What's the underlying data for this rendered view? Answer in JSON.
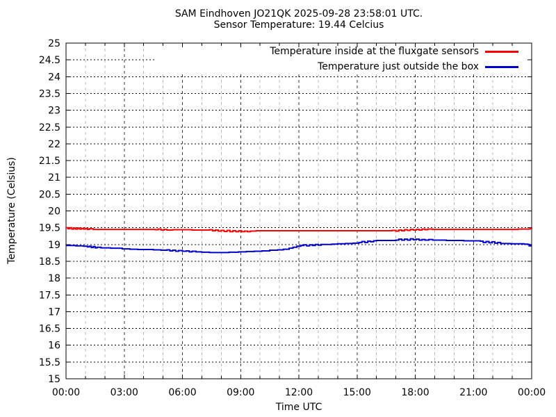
{
  "chart_data": {
    "type": "line",
    "title": "SAM Eindhoven JO21QK 2025-09-28 23:58:01 UTC.",
    "subtitle": "Sensor Temperature: 19.44 Celcius",
    "xlabel": "Time UTC",
    "ylabel": "Temperature (Celsius)",
    "xlim_hours": [
      0,
      24
    ],
    "ylim": [
      15,
      25
    ],
    "ytick_step": 0.5,
    "ytick_labels": [
      "15",
      "15.5",
      "16",
      "16.5",
      "17",
      "17.5",
      "18",
      "18.5",
      "19",
      "19.5",
      "20",
      "20.5",
      "21",
      "21.5",
      "22",
      "22.5",
      "23",
      "23.5",
      "24",
      "24.5",
      "25"
    ],
    "xticks": [
      {
        "hour": 0,
        "label": "00:00"
      },
      {
        "hour": 3,
        "label": "03:00"
      },
      {
        "hour": 6,
        "label": "06:00"
      },
      {
        "hour": 9,
        "label": "09:00"
      },
      {
        "hour": 12,
        "label": "12:00"
      },
      {
        "hour": 15,
        "label": "15:00"
      },
      {
        "hour": 18,
        "label": "18:00"
      },
      {
        "hour": 21,
        "label": "21:00"
      },
      {
        "hour": 24,
        "label": "00:00"
      }
    ],
    "minor_xtick_every_hours": 1,
    "grid": true,
    "legend_position": "top-right-inside",
    "colors": {
      "background": "#ffffff",
      "text": "#000000",
      "border": "#000000",
      "grid_major_y": "#000000",
      "grid_major_x": "#3a3a3a",
      "grid_minor_x": "#b8b8b8"
    },
    "series": [
      {
        "name": "Temperature inside at the fluxgate sensors",
        "color": "#ff0000",
        "style": "steps",
        "points": [
          [
            0,
            19.5
          ],
          [
            0.1,
            19.47
          ],
          [
            0.2,
            19.5
          ],
          [
            0.3,
            19.46
          ],
          [
            0.4,
            19.49
          ],
          [
            0.5,
            19.46
          ],
          [
            0.6,
            19.49
          ],
          [
            0.7,
            19.46
          ],
          [
            0.8,
            19.48
          ],
          [
            0.9,
            19.46
          ],
          [
            1.0,
            19.48
          ],
          [
            1.1,
            19.45
          ],
          [
            1.2,
            19.47
          ],
          [
            1.4,
            19.45
          ],
          [
            2.0,
            19.45
          ],
          [
            3.0,
            19.45
          ],
          [
            4.0,
            19.45
          ],
          [
            4.6,
            19.44
          ],
          [
            4.75,
            19.46
          ],
          [
            4.9,
            19.43
          ],
          [
            5.05,
            19.45
          ],
          [
            5.2,
            19.43
          ],
          [
            5.5,
            19.44
          ],
          [
            6.0,
            19.44
          ],
          [
            6.5,
            19.43
          ],
          [
            7.0,
            19.43
          ],
          [
            7.4,
            19.44
          ],
          [
            7.55,
            19.41
          ],
          [
            7.7,
            19.43
          ],
          [
            7.85,
            19.4
          ],
          [
            8.0,
            19.42
          ],
          [
            8.15,
            19.39
          ],
          [
            8.3,
            19.42
          ],
          [
            8.45,
            19.38
          ],
          [
            8.6,
            19.41
          ],
          [
            8.75,
            19.38
          ],
          [
            8.9,
            19.41
          ],
          [
            9.05,
            19.38
          ],
          [
            9.2,
            19.4
          ],
          [
            9.35,
            19.38
          ],
          [
            9.5,
            19.4
          ],
          [
            9.8,
            19.41
          ],
          [
            10.5,
            19.41
          ],
          [
            12.0,
            19.41
          ],
          [
            14.0,
            19.41
          ],
          [
            16.0,
            19.41
          ],
          [
            16.8,
            19.42
          ],
          [
            17.0,
            19.4
          ],
          [
            17.15,
            19.43
          ],
          [
            17.3,
            19.41
          ],
          [
            17.45,
            19.44
          ],
          [
            17.6,
            19.42
          ],
          [
            17.75,
            19.45
          ],
          [
            17.9,
            19.43
          ],
          [
            18.05,
            19.45
          ],
          [
            18.2,
            19.43
          ],
          [
            18.35,
            19.46
          ],
          [
            18.5,
            19.44
          ],
          [
            18.65,
            19.46
          ],
          [
            18.9,
            19.45
          ],
          [
            19.5,
            19.45
          ],
          [
            20.5,
            19.45
          ],
          [
            21.5,
            19.45
          ],
          [
            22.5,
            19.45
          ],
          [
            23.3,
            19.46
          ],
          [
            23.8,
            19.46
          ],
          [
            23.92,
            19.48
          ],
          [
            24,
            19.5
          ]
        ]
      },
      {
        "name": "Temperature just outside the box",
        "color": "#0000cd",
        "style": "steps",
        "points": [
          [
            0,
            18.97
          ],
          [
            0.5,
            18.96
          ],
          [
            0.9,
            18.95
          ],
          [
            1.1,
            18.93
          ],
          [
            1.2,
            18.95
          ],
          [
            1.3,
            18.91
          ],
          [
            1.4,
            18.94
          ],
          [
            1.5,
            18.9
          ],
          [
            1.6,
            18.92
          ],
          [
            1.8,
            18.9
          ],
          [
            2.1,
            18.9
          ],
          [
            2.3,
            18.89
          ],
          [
            2.6,
            18.89
          ],
          [
            2.9,
            18.87
          ],
          [
            3.3,
            18.86
          ],
          [
            3.7,
            18.85
          ],
          [
            4.1,
            18.85
          ],
          [
            4.5,
            18.84
          ],
          [
            4.9,
            18.83
          ],
          [
            5.2,
            18.84
          ],
          [
            5.35,
            18.81
          ],
          [
            5.5,
            18.83
          ],
          [
            5.65,
            18.8
          ],
          [
            5.8,
            18.82
          ],
          [
            6.0,
            18.8
          ],
          [
            6.2,
            18.81
          ],
          [
            6.35,
            18.78
          ],
          [
            6.5,
            18.8
          ],
          [
            6.7,
            18.78
          ],
          [
            7.0,
            18.77
          ],
          [
            7.4,
            18.76
          ],
          [
            7.9,
            18.76
          ],
          [
            8.4,
            18.77
          ],
          [
            8.9,
            18.78
          ],
          [
            9.3,
            18.79
          ],
          [
            9.7,
            18.8
          ],
          [
            10.1,
            18.81
          ],
          [
            10.5,
            18.83
          ],
          [
            10.9,
            18.84
          ],
          [
            11.2,
            18.86
          ],
          [
            11.5,
            18.89
          ],
          [
            11.7,
            18.92
          ],
          [
            11.9,
            18.95
          ],
          [
            12.1,
            18.97
          ],
          [
            12.25,
            18.99
          ],
          [
            12.4,
            18.96
          ],
          [
            12.55,
            18.99
          ],
          [
            12.7,
            18.97
          ],
          [
            12.85,
            19.0
          ],
          [
            13.0,
            18.98
          ],
          [
            13.15,
            19.0
          ],
          [
            13.4,
            19.0
          ],
          [
            13.7,
            19.01
          ],
          [
            14.0,
            19.02
          ],
          [
            14.4,
            19.03
          ],
          [
            14.8,
            19.04
          ],
          [
            15.1,
            19.06
          ],
          [
            15.25,
            19.09
          ],
          [
            15.4,
            19.06
          ],
          [
            15.55,
            19.1
          ],
          [
            15.7,
            19.08
          ],
          [
            15.85,
            19.11
          ],
          [
            16.0,
            19.12
          ],
          [
            16.5,
            19.12
          ],
          [
            17.0,
            19.13
          ],
          [
            17.15,
            19.16
          ],
          [
            17.3,
            19.13
          ],
          [
            17.45,
            19.16
          ],
          [
            17.6,
            19.13
          ],
          [
            17.75,
            19.17
          ],
          [
            17.9,
            19.14
          ],
          [
            18.05,
            19.16
          ],
          [
            18.2,
            19.13
          ],
          [
            18.35,
            19.15
          ],
          [
            18.5,
            19.13
          ],
          [
            18.7,
            19.15
          ],
          [
            18.9,
            19.13
          ],
          [
            19.2,
            19.13
          ],
          [
            19.6,
            19.12
          ],
          [
            20.0,
            19.12
          ],
          [
            20.5,
            19.11
          ],
          [
            21.0,
            19.11
          ],
          [
            21.35,
            19.1
          ],
          [
            21.5,
            19.06
          ],
          [
            21.65,
            19.09
          ],
          [
            21.8,
            19.05
          ],
          [
            21.95,
            19.08
          ],
          [
            22.1,
            19.04
          ],
          [
            22.25,
            19.06
          ],
          [
            22.4,
            19.03
          ],
          [
            22.6,
            19.03
          ],
          [
            22.9,
            19.02
          ],
          [
            23.3,
            19.02
          ],
          [
            23.6,
            19.01
          ],
          [
            23.8,
            19.0
          ],
          [
            23.87,
            18.96
          ],
          [
            23.95,
            18.99
          ],
          [
            24,
            18.99
          ]
        ]
      }
    ]
  }
}
